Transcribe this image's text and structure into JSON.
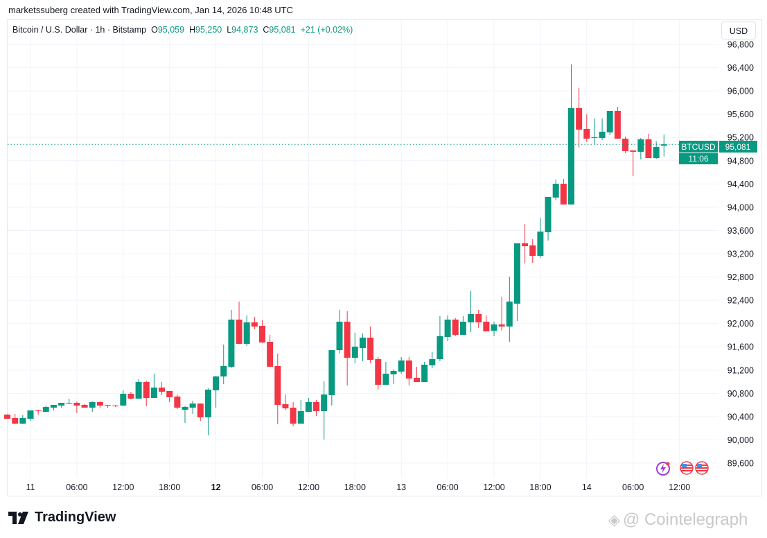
{
  "credit": "marketssuberg created with TradingView.com, Jan 14, 2026 10:48 UTC",
  "legend": {
    "symbol": "Bitcoin / U.S. Dollar · 1h · Bitstamp",
    "o_label": "O",
    "o": "95,059",
    "h_label": "H",
    "h": "95,250",
    "l_label": "L",
    "l": "94,873",
    "c_label": "C",
    "c": "95,081",
    "change": "+21 (+0.02%)"
  },
  "currency_button": "USD",
  "price_tag": {
    "symbol": "BTCUSD",
    "price": "95,081",
    "countdown": "11:06"
  },
  "branding": {
    "logo": "TradingView",
    "watermark": "@ Cointelegraph"
  },
  "colors": {
    "up": "#089981",
    "down": "#F23645",
    "grid": "#f0f3fa",
    "text": "#131722"
  },
  "icons": [
    "events-lightning-icon",
    "us-flag-icon",
    "us-flag-icon"
  ],
  "chart_data": {
    "type": "candlestick",
    "title": "Bitcoin / U.S. Dollar · 1h · Bitstamp",
    "interval": "1h",
    "start": "Jan 10 21:00 UTC",
    "ylim": [
      89400,
      97000
    ],
    "y_ticks": [
      "96,800",
      "96,400",
      "96,000",
      "95,600",
      "95,200",
      "94,800",
      "94,400",
      "94,000",
      "93,600",
      "93,200",
      "92,800",
      "92,400",
      "92,000",
      "91,600",
      "91,200",
      "90,800",
      "90,400",
      "90,000",
      "89,600"
    ],
    "x_ticks": [
      {
        "label": "11",
        "hour": 0,
        "bold": false
      },
      {
        "label": "06:00",
        "hour": 6,
        "bold": false
      },
      {
        "label": "12:00",
        "hour": 12,
        "bold": false
      },
      {
        "label": "18:00",
        "hour": 18,
        "bold": false
      },
      {
        "label": "12",
        "hour": 24,
        "bold": true
      },
      {
        "label": "06:00",
        "hour": 30,
        "bold": false
      },
      {
        "label": "12:00",
        "hour": 36,
        "bold": false
      },
      {
        "label": "18:00",
        "hour": 42,
        "bold": false
      },
      {
        "label": "13",
        "hour": 48,
        "bold": false
      },
      {
        "label": "06:00",
        "hour": 54,
        "bold": false
      },
      {
        "label": "12:00",
        "hour": 60,
        "bold": false
      },
      {
        "label": "18:00",
        "hour": 66,
        "bold": false
      },
      {
        "label": "14",
        "hour": 72,
        "bold": false
      },
      {
        "label": "06:00",
        "hour": 78,
        "bold": false
      },
      {
        "label": "12:00",
        "hour": 84,
        "bold": false
      }
    ],
    "first_candle_hour": -3,
    "last_price": 95081,
    "ohlc": [
      [
        90435,
        90440,
        90360,
        90363
      ],
      [
        90375,
        90447,
        90268,
        90279
      ],
      [
        90279,
        90423,
        90270,
        90375
      ],
      [
        90363,
        90506,
        90327,
        90506
      ],
      [
        90506,
        90518,
        90435,
        90494
      ],
      [
        90482,
        90590,
        90480,
        90566
      ],
      [
        90554,
        90602,
        90506,
        90602
      ],
      [
        90590,
        90637,
        90554,
        90637
      ],
      [
        90625,
        90709,
        90614,
        90637
      ],
      [
        90637,
        90661,
        90459,
        90590
      ],
      [
        90602,
        90614,
        90554,
        90554
      ],
      [
        90554,
        90661,
        90482,
        90649
      ],
      [
        90649,
        90661,
        90542,
        90590
      ],
      [
        90602,
        90602,
        90554,
        90590
      ],
      [
        90590,
        90602,
        90566,
        90578
      ],
      [
        90590,
        90852,
        90578,
        90792
      ],
      [
        90792,
        90828,
        90697,
        90709
      ],
      [
        90709,
        91043,
        90709,
        90995
      ],
      [
        90995,
        91019,
        90578,
        90721
      ],
      [
        90721,
        91138,
        90721,
        90899
      ],
      [
        90899,
        90995,
        90769,
        90828
      ],
      [
        90840,
        90840,
        90649,
        90733
      ],
      [
        90745,
        90780,
        90530,
        90554
      ],
      [
        90518,
        90578,
        90291,
        90566
      ],
      [
        90554,
        90673,
        90447,
        90625
      ],
      [
        90625,
        90625,
        90327,
        90387
      ],
      [
        90387,
        90888,
        90077,
        90864
      ],
      [
        90852,
        91102,
        90554,
        91090
      ],
      [
        91090,
        91639,
        90960,
        91269
      ],
      [
        91257,
        92235,
        91233,
        92068
      ],
      [
        92068,
        92378,
        91651,
        91651
      ],
      [
        91651,
        92140,
        91615,
        92020
      ],
      [
        92020,
        92116,
        91901,
        91949
      ],
      [
        91961,
        92056,
        91663,
        91675
      ],
      [
        91686,
        91806,
        91257,
        91257
      ],
      [
        91269,
        91484,
        90268,
        90602
      ],
      [
        90614,
        90780,
        90506,
        90542
      ],
      [
        90554,
        90649,
        90232,
        90279
      ],
      [
        90279,
        90685,
        90279,
        90494
      ],
      [
        90482,
        90721,
        90482,
        90649
      ],
      [
        90649,
        90685,
        90411,
        90494
      ],
      [
        90494,
        91007,
        90006,
        90780
      ],
      [
        90769,
        91543,
        90590,
        91543
      ],
      [
        91543,
        92235,
        91484,
        92032
      ],
      [
        92032,
        92211,
        90935,
        91412
      ],
      [
        91412,
        91841,
        91317,
        91603
      ],
      [
        91579,
        91829,
        91353,
        91758
      ],
      [
        91758,
        91949,
        91317,
        91376
      ],
      [
        91388,
        91424,
        90864,
        90947
      ],
      [
        90947,
        91341,
        90947,
        91138
      ],
      [
        91126,
        91210,
        90960,
        91186
      ],
      [
        91174,
        91424,
        91138,
        91365
      ],
      [
        91365,
        91424,
        90935,
        91055
      ],
      [
        91067,
        91257,
        90995,
        90995
      ],
      [
        90995,
        91341,
        90995,
        91293
      ],
      [
        91281,
        91508,
        91233,
        91388
      ],
      [
        91388,
        92128,
        91353,
        91782
      ],
      [
        91770,
        92140,
        91698,
        92068
      ],
      [
        92068,
        92092,
        91782,
        91806
      ],
      [
        91806,
        92128,
        91806,
        92032
      ],
      [
        92020,
        92557,
        91853,
        92163
      ],
      [
        92163,
        92235,
        91925,
        92020
      ],
      [
        92032,
        92140,
        91865,
        91865
      ],
      [
        91877,
        92032,
        91782,
        91985
      ],
      [
        91985,
        92461,
        91877,
        91949
      ],
      [
        91949,
        92807,
        91686,
        92378
      ],
      [
        92342,
        93379,
        92044,
        93379
      ],
      [
        93379,
        93713,
        93033,
        93331
      ],
      [
        93343,
        93451,
        93045,
        93164
      ],
      [
        93164,
        93820,
        93129,
        93582
      ],
      [
        93570,
        94178,
        93427,
        94178
      ],
      [
        94166,
        94476,
        94118,
        94404
      ],
      [
        94404,
        94488,
        94047,
        94047
      ],
      [
        94047,
        96454,
        94047,
        95704
      ],
      [
        95704,
        96049,
        95024,
        95334
      ],
      [
        95346,
        95596,
        95120,
        95179
      ],
      [
        95191,
        95525,
        95084,
        95203
      ],
      [
        95191,
        95525,
        95155,
        95298
      ],
      [
        95286,
        95656,
        95239,
        95656
      ],
      [
        95656,
        95727,
        95179,
        95179
      ],
      [
        95179,
        95215,
        94929,
        94965
      ],
      [
        94976,
        94976,
        94535,
        94953
      ],
      [
        94953,
        95191,
        94821,
        95167
      ],
      [
        95167,
        95262,
        94845,
        94845
      ],
      [
        94845,
        95131,
        94833,
        95036
      ],
      [
        95059,
        95250,
        94873,
        95081
      ]
    ]
  }
}
